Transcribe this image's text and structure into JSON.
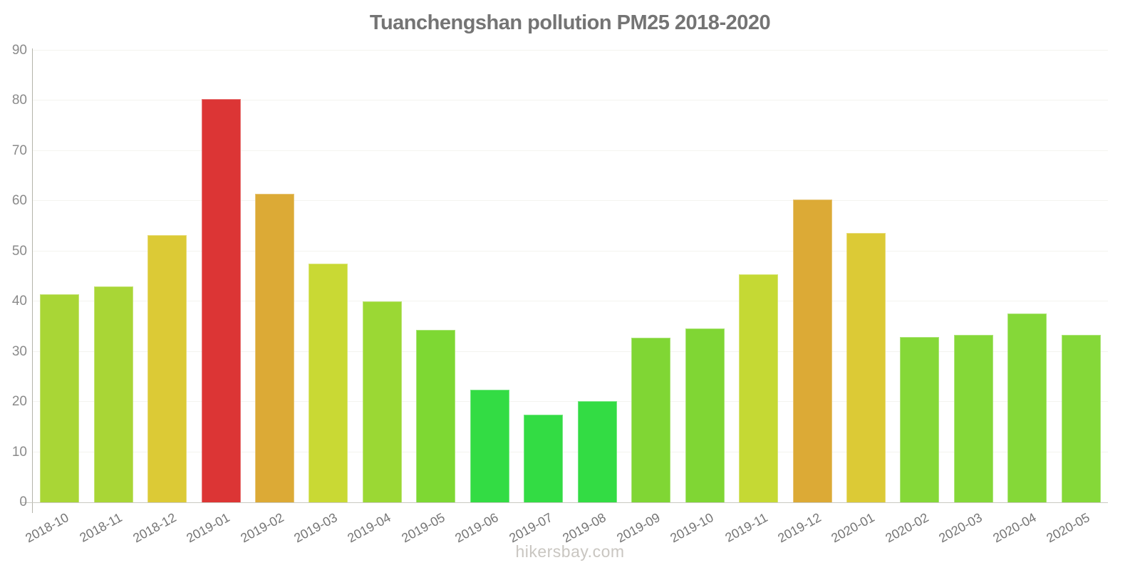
{
  "title": "Tuanchengshan pollution PM25 2018-2020",
  "watermark": "hikersbay.com",
  "colors": {
    "background": "#ffffff",
    "title_text": "#747474",
    "y_label_text": "#8a8a8a",
    "x_label_text": "#757575",
    "axis_line": "#b3b3aa",
    "baseline": "#c9c9c2",
    "gridline": "#f4f4ef",
    "watermark_text": "#c9c6c1"
  },
  "chart_data": {
    "type": "bar",
    "title": "Tuanchengshan pollution PM25 2018-2020",
    "xlabel": "",
    "ylabel": "",
    "categories": [
      "2018-10",
      "2018-11",
      "2018-12",
      "2019-01",
      "2019-02",
      "2019-03",
      "2019-04",
      "2019-05",
      "2019-06",
      "2019-07",
      "2019-08",
      "2019-09",
      "2019-10",
      "2019-11",
      "2019-12",
      "2020-01",
      "2020-02",
      "2020-03",
      "2020-04",
      "2020-05"
    ],
    "values": [
      41.5,
      43.0,
      53.3,
      80.4,
      61.4,
      47.6,
      40.1,
      34.4,
      22.4,
      17.4,
      20.1,
      32.8,
      34.7,
      45.4,
      60.4,
      53.6,
      33.0,
      33.4,
      37.6,
      33.3
    ],
    "bar_colors": [
      "#a9d636",
      "#a9d636",
      "#dcca36",
      "#dc3535",
      "#dcaa36",
      "#c9d934",
      "#9bd834",
      "#7ed833",
      "#33dc44",
      "#33dc44",
      "#33dc44",
      "#80d634",
      "#80d634",
      "#c5d934",
      "#dcaa36",
      "#dcca36",
      "#85d838",
      "#85d838",
      "#85d838",
      "#85d838"
    ],
    "ylim": [
      0,
      90
    ],
    "yticks": [
      0,
      10,
      20,
      30,
      40,
      50,
      60,
      70,
      80,
      90
    ],
    "grid": true,
    "legend": false,
    "x_label_rotation_deg": -29
  }
}
